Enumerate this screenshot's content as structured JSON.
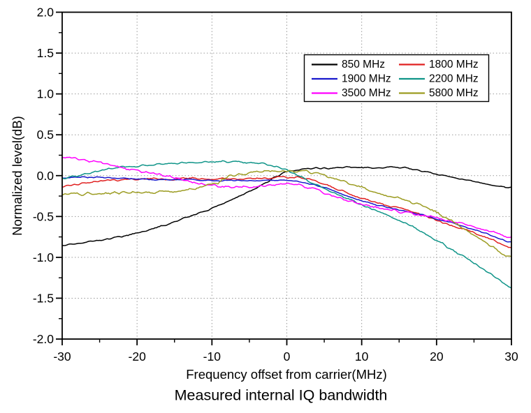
{
  "chart_data": {
    "type": "line",
    "title": "Measured internal IQ bandwidth",
    "xlabel": "Frequency offset from carrier(MHz)",
    "ylabel": "Normalized level(dB)",
    "xlim": [
      -30,
      30
    ],
    "ylim": [
      -2.0,
      2.0
    ],
    "grid": {
      "style": "dotted",
      "color": "#9a9a9a",
      "x_lines": [
        -20,
        -10,
        0,
        10,
        20
      ],
      "y_lines": [
        -1.5,
        -1.0,
        -0.5,
        0.0,
        0.5,
        1.0,
        1.5
      ]
    },
    "x_major_ticks": [
      -30,
      -20,
      -10,
      0,
      10,
      20,
      30
    ],
    "x_tick_labels": [
      "-30",
      "-20",
      "-10",
      "0",
      "10",
      "20",
      "30"
    ],
    "x_minor_ticks": [
      -25,
      -15,
      -5,
      5,
      15,
      25
    ],
    "y_major_ticks": [
      -2.0,
      -1.5,
      -1.0,
      -0.5,
      0.0,
      0.5,
      1.0,
      1.5,
      2.0
    ],
    "y_tick_labels": [
      "-2.0",
      "-1.5",
      "-1.0",
      "-0.5",
      "0.0",
      "0.5",
      "1.0",
      "1.5",
      "2.0"
    ],
    "y_minor_ticks": [
      -1.75,
      -1.25,
      -0.75,
      -0.25,
      0.25,
      0.75,
      1.25,
      1.75
    ],
    "legend": {
      "position": "upper-right-inside",
      "columns": 2,
      "entries": [
        "850 MHz",
        "1800 MHz",
        "1900 MHz",
        "2200 MHz",
        "3500 MHz",
        "5800 MHz"
      ]
    },
    "x": [
      -30,
      -27.5,
      -25,
      -22.5,
      -20,
      -17.5,
      -15,
      -12.5,
      -10,
      -7.5,
      -5,
      -2.5,
      0,
      2.5,
      5,
      7.5,
      10,
      12.5,
      15,
      17.5,
      20,
      22.5,
      25,
      27.5,
      30
    ],
    "series": [
      {
        "name": "850 MHz",
        "color": "#000000",
        "values": [
          -0.85,
          -0.82,
          -0.79,
          -0.75,
          -0.7,
          -0.64,
          -0.56,
          -0.48,
          -0.4,
          -0.3,
          -0.19,
          -0.07,
          0.05,
          0.08,
          0.09,
          0.1,
          0.1,
          0.1,
          0.1,
          0.07,
          0.02,
          -0.03,
          -0.07,
          -0.11,
          -0.15
        ]
      },
      {
        "name": "1800 MHz",
        "color": "#e02020",
        "values": [
          -0.13,
          -0.1,
          -0.07,
          -0.05,
          -0.04,
          -0.04,
          -0.04,
          -0.03,
          -0.04,
          -0.04,
          -0.04,
          -0.03,
          -0.02,
          -0.03,
          -0.1,
          -0.19,
          -0.28,
          -0.34,
          -0.4,
          -0.46,
          -0.55,
          -0.62,
          -0.7,
          -0.79,
          -0.89
        ]
      },
      {
        "name": "1900 MHz",
        "color": "#1818cc",
        "values": [
          -0.03,
          -0.02,
          -0.02,
          -0.03,
          -0.04,
          -0.05,
          -0.05,
          -0.05,
          -0.06,
          -0.06,
          -0.06,
          -0.06,
          -0.06,
          -0.09,
          -0.15,
          -0.23,
          -0.31,
          -0.37,
          -0.42,
          -0.47,
          -0.53,
          -0.59,
          -0.66,
          -0.74,
          -0.82
        ]
      },
      {
        "name": "2200 MHz",
        "color": "#0f9488",
        "values": [
          -0.04,
          0.01,
          0.06,
          0.1,
          0.12,
          0.14,
          0.15,
          0.16,
          0.17,
          0.17,
          0.16,
          0.13,
          0.07,
          -0.05,
          -0.15,
          -0.26,
          -0.36,
          -0.45,
          -0.54,
          -0.66,
          -0.79,
          -0.93,
          -1.07,
          -1.22,
          -1.37
        ]
      },
      {
        "name": "3500 MHz",
        "color": "#ff00ff",
        "values": [
          0.23,
          0.2,
          0.16,
          0.11,
          0.06,
          0.02,
          -0.03,
          -0.08,
          -0.12,
          -0.14,
          -0.14,
          -0.12,
          -0.1,
          -0.13,
          -0.21,
          -0.28,
          -0.35,
          -0.4,
          -0.44,
          -0.48,
          -0.52,
          -0.57,
          -0.63,
          -0.69,
          -0.76
        ]
      },
      {
        "name": "5800 MHz",
        "color": "#9c9c22",
        "values": [
          -0.23,
          -0.22,
          -0.22,
          -0.21,
          -0.21,
          -0.2,
          -0.19,
          -0.16,
          -0.11,
          -0.01,
          0.04,
          0.05,
          0.06,
          0.05,
          0.0,
          -0.07,
          -0.14,
          -0.22,
          -0.28,
          -0.35,
          -0.45,
          -0.58,
          -0.73,
          -0.87,
          -1.0
        ]
      }
    ]
  }
}
